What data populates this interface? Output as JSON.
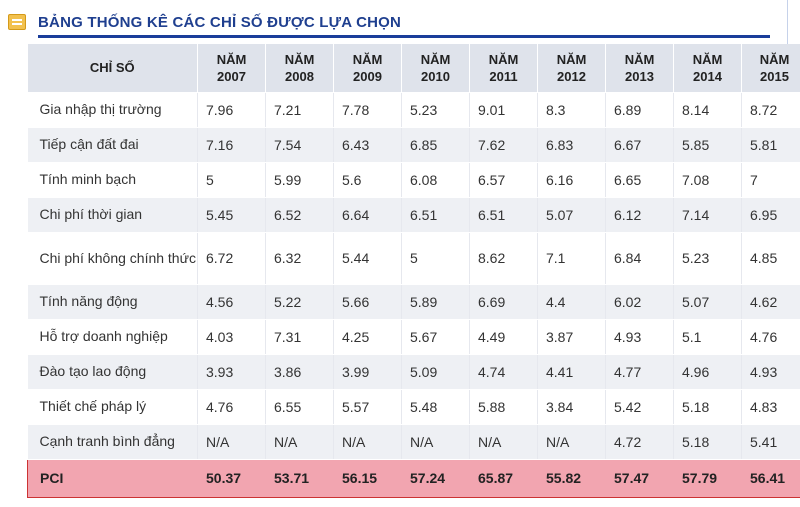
{
  "header": {
    "title": "BẢNG THỐNG KÊ CÁC CHỈ SỐ ĐƯỢC LỰA CHỌN",
    "icon": "document-icon"
  },
  "table": {
    "col0_header": "CHỈ SỐ",
    "years": [
      [
        "NĂM",
        "2007"
      ],
      [
        "NĂM",
        "2008"
      ],
      [
        "NĂM",
        "2009"
      ],
      [
        "NĂM",
        "2010"
      ],
      [
        "NĂM",
        "2011"
      ],
      [
        "NĂM",
        "2012"
      ],
      [
        "NĂM",
        "2013"
      ],
      [
        "NĂM",
        "2014"
      ],
      [
        "NĂM",
        "2015"
      ]
    ],
    "rows": [
      {
        "label": "Gia nhập thị trường",
        "values": [
          "7.96",
          "7.21",
          "7.78",
          "5.23",
          "9.01",
          "8.3",
          "6.89",
          "8.14",
          "8.72"
        ]
      },
      {
        "label": "Tiếp cận đất đai",
        "values": [
          "7.16",
          "7.54",
          "6.43",
          "6.85",
          "7.62",
          "6.83",
          "6.67",
          "5.85",
          "5.81"
        ]
      },
      {
        "label": "Tính minh bạch",
        "values": [
          "5",
          "5.99",
          "5.6",
          "6.08",
          "6.57",
          "6.16",
          "6.65",
          "7.08",
          "7"
        ]
      },
      {
        "label": "Chi phí thời gian",
        "values": [
          "5.45",
          "6.52",
          "6.64",
          "6.51",
          "6.51",
          "5.07",
          "6.12",
          "7.14",
          "6.95"
        ]
      },
      {
        "label": "Chi phí không chính thức",
        "values": [
          "6.72",
          "6.32",
          "5.44",
          "5",
          "8.62",
          "7.1",
          "6.84",
          "5.23",
          "4.85"
        ]
      },
      {
        "label": "Tính năng động",
        "values": [
          "4.56",
          "5.22",
          "5.66",
          "5.89",
          "6.69",
          "4.4",
          "6.02",
          "5.07",
          "4.62"
        ]
      },
      {
        "label": "Hỗ trợ doanh nghiệp",
        "values": [
          "4.03",
          "7.31",
          "4.25",
          "5.67",
          "4.49",
          "3.87",
          "4.93",
          "5.1",
          "4.76"
        ]
      },
      {
        "label": "Đào tạo lao động",
        "values": [
          "3.93",
          "3.86",
          "3.99",
          "5.09",
          "4.74",
          "4.41",
          "4.77",
          "4.96",
          "4.93"
        ]
      },
      {
        "label": "Thiết chế pháp lý",
        "values": [
          "4.76",
          "6.55",
          "5.57",
          "5.48",
          "5.88",
          "3.84",
          "5.42",
          "5.18",
          "4.83"
        ]
      },
      {
        "label": "Cạnh tranh bình đẳng",
        "values": [
          "N/A",
          "N/A",
          "N/A",
          "N/A",
          "N/A",
          "N/A",
          "4.72",
          "5.18",
          "5.41"
        ]
      }
    ],
    "pci": {
      "label": "PCI",
      "values": [
        "50.37",
        "53.71",
        "56.15",
        "57.24",
        "65.87",
        "55.82",
        "57.47",
        "57.79",
        "56.41"
      ]
    }
  },
  "colors": {
    "title": "#1f3f8f",
    "rule": "#1a3d9a",
    "header_bg": "#dfe3eb",
    "stripe": "#eef0f4",
    "pci_bg": "#f2a5b0",
    "pci_border": "#cc3333"
  }
}
